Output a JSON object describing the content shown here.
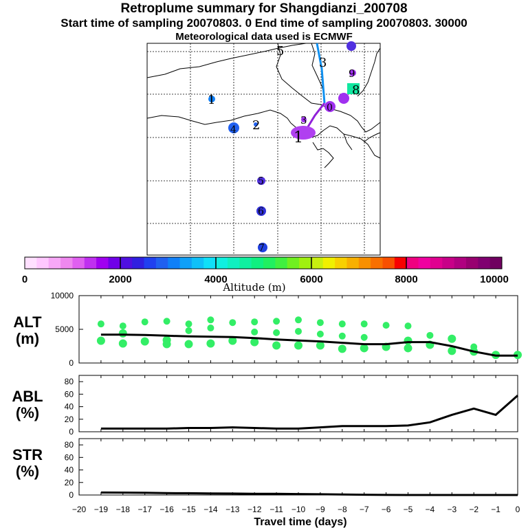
{
  "header": {
    "title": "Retroplume summary for Shangdianzi_200708",
    "sampling": "Start time of sampling 20070803.     0     End time of sampling 20070803. 30000",
    "met": "Meteorological data used is ECMWF"
  },
  "map": {
    "labels": [
      {
        "text": "5"
      },
      {
        "text": "3"
      },
      {
        "text": "9"
      },
      {
        "text": "8"
      },
      {
        "text": "1"
      },
      {
        "text": "2"
      },
      {
        "text": "4"
      },
      {
        "text": "3"
      },
      {
        "text": "1"
      },
      {
        "text": "0"
      },
      {
        "text": "5"
      },
      {
        "text": "6"
      },
      {
        "text": "7"
      }
    ]
  },
  "colorbar": {
    "ticks": [
      "0",
      "2000",
      "4000",
      "6000",
      "8000",
      "10000"
    ],
    "label": "Altitude (m)",
    "colors": [
      "#ffe0ff",
      "#ffc8ff",
      "#f7a8f7",
      "#ef88ef",
      "#e060f0",
      "#c030f0",
      "#a000f0",
      "#7000e8",
      "#5010e0",
      "#3020e0",
      "#2040f0",
      "#2060f0",
      "#1080f8",
      "#10a0f8",
      "#10c0f8",
      "#10e0f8",
      "#10f0e0",
      "#10f0c0",
      "#10f0a0",
      "#10f080",
      "#20f060",
      "#40f040",
      "#70f020",
      "#a0f010",
      "#c8f010",
      "#f0f000",
      "#f8d000",
      "#f8b000",
      "#f89000",
      "#f87000",
      "#f85000",
      "#f80000",
      "#f00080",
      "#f000a0",
      "#e00090",
      "#c80088",
      "#b00080",
      "#980070",
      "#800070",
      "#700060"
    ]
  },
  "panels": {
    "alt": {
      "label1": "ALT",
      "label2": "(m)"
    },
    "abl": {
      "label1": "ABL",
      "label2": "(%)"
    },
    "str": {
      "label1": "STR",
      "label2": "(%)"
    }
  },
  "xaxis": {
    "label": "Travel time (days)"
  },
  "chart_data": [
    {
      "type": "line",
      "title": "ALT",
      "ylabel": "ALT (m)",
      "xlabel": "Travel time (days)",
      "xlim": [
        -20,
        0
      ],
      "ylim": [
        0,
        10000
      ],
      "yticks": [
        0,
        5000,
        10000
      ],
      "x": [
        -19,
        -18,
        -17,
        -16,
        -15,
        -14,
        -13,
        -12,
        -11,
        -10,
        -9,
        -8,
        -7,
        -6,
        -5,
        -4,
        -3,
        -2,
        -1,
        0
      ],
      "values": [
        4200,
        4200,
        4150,
        4050,
        3950,
        3900,
        3850,
        3700,
        3500,
        3350,
        3200,
        3000,
        2800,
        2800,
        3100,
        3100,
        2500,
        1700,
        1100,
        1100
      ],
      "scatter_series": [
        {
          "name": "plume clusters (low)",
          "points": [
            [
              -19,
              3300
            ],
            [
              -18,
              4400
            ],
            [
              -18,
              2900
            ],
            [
              -17,
              3200
            ],
            [
              -16,
              3400
            ],
            [
              -16,
              2800
            ],
            [
              -15,
              2800
            ],
            [
              -14,
              2900
            ],
            [
              -13,
              3300
            ],
            [
              -12,
              3100
            ],
            [
              -11,
              2600
            ],
            [
              -10,
              2600
            ],
            [
              -9,
              2600
            ],
            [
              -8,
              2100
            ],
            [
              -7,
              2200
            ],
            [
              -6,
              2400
            ],
            [
              -5,
              3300
            ],
            [
              -5,
              2200
            ],
            [
              -4,
              2700
            ],
            [
              -3,
              3600
            ],
            [
              -3,
              1800
            ],
            [
              -2,
              1700
            ],
            [
              -1,
              1200
            ],
            [
              0,
              1200
            ]
          ]
        },
        {
          "name": "plume clusters (high)",
          "points": [
            [
              -19,
              5800
            ],
            [
              -18,
              5500
            ],
            [
              -17,
              6100
            ],
            [
              -16,
              6200
            ],
            [
              -15,
              5800
            ],
            [
              -15,
              4800
            ],
            [
              -14,
              6400
            ],
            [
              -14,
              5200
            ],
            [
              -13,
              6000
            ],
            [
              -12,
              6100
            ],
            [
              -12,
              4600
            ],
            [
              -11,
              6200
            ],
            [
              -11,
              4500
            ],
            [
              -10,
              6400
            ],
            [
              -10,
              4700
            ],
            [
              -9,
              6000
            ],
            [
              -9,
              4300
            ],
            [
              -8,
              5800
            ],
            [
              -8,
              4000
            ],
            [
              -7,
              5800
            ],
            [
              -7,
              3800
            ],
            [
              -6,
              5600
            ],
            [
              -5,
              5500
            ],
            [
              -4,
              4100
            ],
            [
              -2,
              2400
            ]
          ]
        }
      ]
    },
    {
      "type": "line",
      "title": "ABL",
      "ylabel": "ABL (%)",
      "xlabel": "Travel time (days)",
      "xlim": [
        -20,
        0
      ],
      "ylim": [
        0,
        90
      ],
      "yticks": [
        0,
        20,
        40,
        60,
        80
      ],
      "x": [
        -19,
        -18,
        -17,
        -16,
        -15,
        -14,
        -13,
        -12,
        -11,
        -10,
        -9,
        -8,
        -7,
        -6,
        -5,
        -4,
        -3,
        -2,
        -1,
        0
      ],
      "values": [
        5,
        5,
        5,
        5,
        6,
        6,
        7,
        6,
        5,
        5,
        7,
        9,
        9,
        9,
        10,
        15,
        27,
        37,
        27,
        58
      ]
    },
    {
      "type": "line",
      "title": "STR",
      "ylabel": "STR (%)",
      "xlabel": "Travel time (days)",
      "xlim": [
        -20,
        0
      ],
      "ylim": [
        0,
        90
      ],
      "yticks": [
        0,
        20,
        40,
        60,
        80
      ],
      "x": [
        -19,
        -18,
        -17,
        -16,
        -15,
        -14,
        -13,
        -12,
        -11,
        -10,
        -9,
        -8,
        -7,
        -6,
        -5,
        -4,
        -3,
        -2,
        -1,
        0
      ],
      "values": [
        4,
        3.8,
        3.5,
        3,
        2.8,
        2.5,
        2.3,
        2,
        2,
        1.5,
        1.2,
        0.8,
        0.4,
        0.1,
        0,
        0,
        0,
        0,
        0,
        0
      ]
    }
  ]
}
